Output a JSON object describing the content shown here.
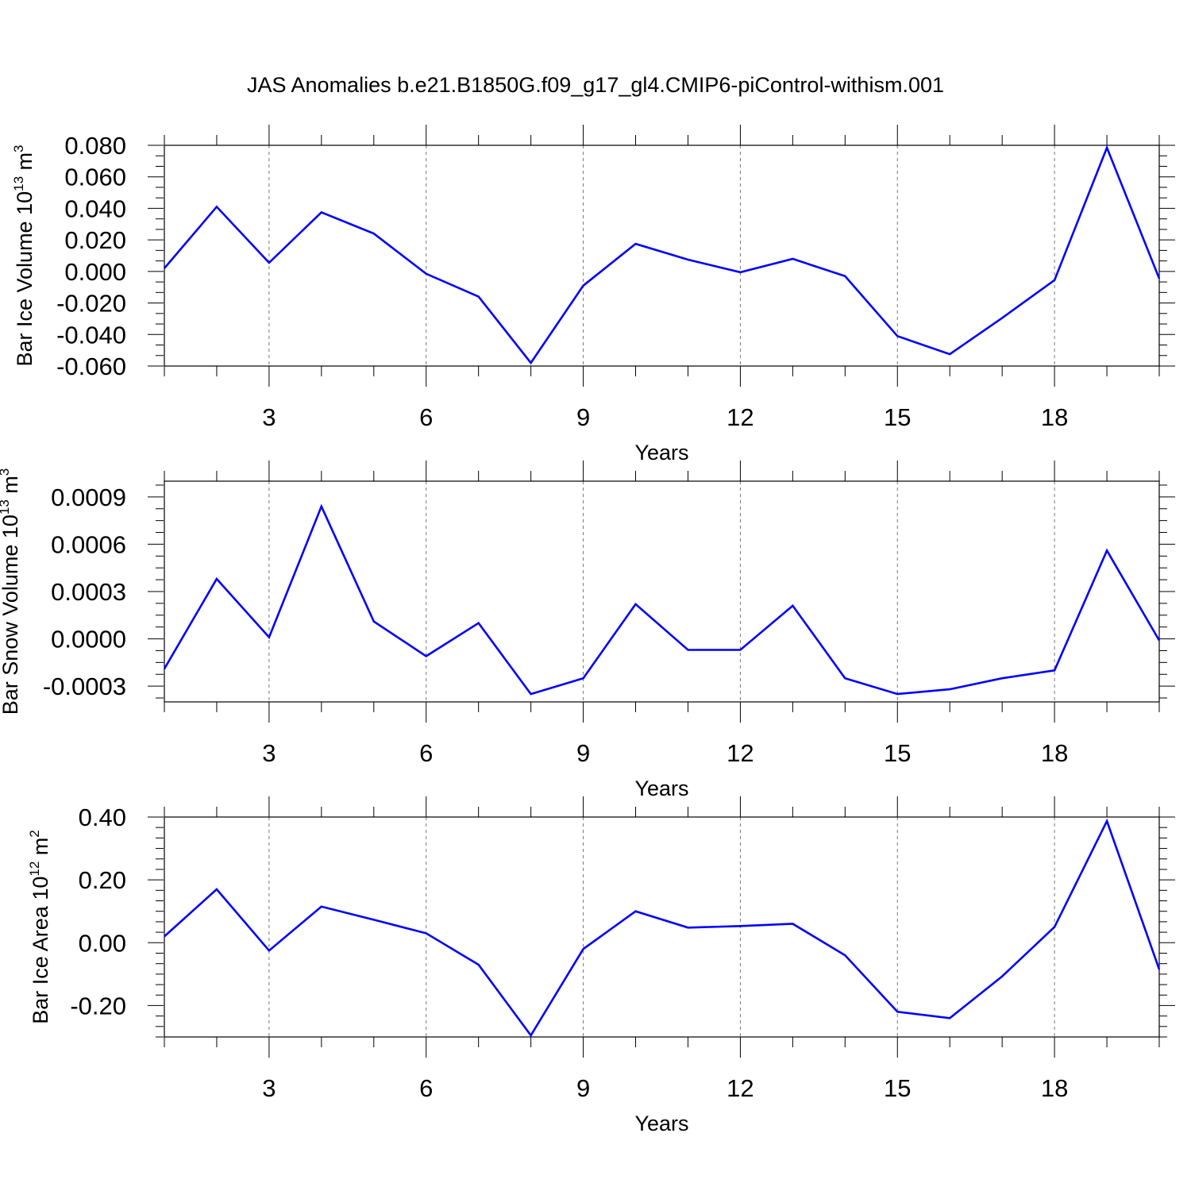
{
  "page": {
    "title": "JAS Anomalies b.e21.B1850G.f09_g17_gl4.CMIP6-piControl-withism.001"
  },
  "colors": {
    "series": "#0000ff",
    "axis": "#000000",
    "grid": "#777777"
  },
  "chart_data": [
    {
      "type": "line",
      "title": "",
      "xlabel": "Years",
      "ylabel": "Bar Ice Volume 10",
      "ylabel_exp": "13",
      "ylabel_unit": " m",
      "ylabel_unit_exp": "3",
      "xlim": [
        1,
        20
      ],
      "ylim": [
        -0.06,
        0.08
      ],
      "xticks": [
        3,
        6,
        9,
        12,
        15,
        18
      ],
      "xtick_labels": [
        "3",
        "6",
        "9",
        "12",
        "15",
        "18"
      ],
      "yticks": [
        -0.06,
        -0.04,
        -0.02,
        0.0,
        0.02,
        0.04,
        0.06,
        0.08
      ],
      "ytick_labels": [
        "-0.060",
        "-0.040",
        "-0.020",
        "0.000",
        "0.020",
        "0.040",
        "0.060",
        "0.080"
      ],
      "grid": "vertical dashed at major x ticks",
      "series": [
        {
          "x": [
            1,
            2,
            3,
            4,
            5,
            6,
            7,
            8,
            9,
            10,
            11,
            12,
            13,
            14,
            15,
            16,
            17,
            18,
            19,
            20
          ],
          "values": [
            0.002,
            0.041,
            0.0055,
            0.0375,
            0.024,
            -0.0015,
            -0.016,
            -0.058,
            -0.009,
            0.0175,
            0.0075,
            -0.0005,
            0.008,
            -0.003,
            -0.041,
            -0.0525,
            -0.0295,
            -0.0055,
            0.0785,
            -0.0045
          ]
        }
      ]
    },
    {
      "type": "line",
      "title": "",
      "xlabel": "Years",
      "ylabel": "Bar Snow Volume 10",
      "ylabel_exp": "13",
      "ylabel_unit": " m",
      "ylabel_unit_exp": "3",
      "xlim": [
        1,
        20
      ],
      "ylim": [
        -0.0004,
        0.001
      ],
      "xticks": [
        3,
        6,
        9,
        12,
        15,
        18
      ],
      "xtick_labels": [
        "3",
        "6",
        "9",
        "12",
        "15",
        "18"
      ],
      "yticks": [
        -0.0003,
        0.0,
        0.0003,
        0.0006,
        0.0009
      ],
      "ytick_labels": [
        "-0.0003",
        "0.0000",
        "0.0003",
        "0.0006",
        "0.0009"
      ],
      "grid": "vertical dashed at major x ticks",
      "series": [
        {
          "x": [
            1,
            2,
            3,
            4,
            5,
            6,
            7,
            8,
            9,
            10,
            11,
            12,
            13,
            14,
            15,
            16,
            17,
            18,
            19,
            20
          ],
          "values": [
            -0.00019,
            0.00038,
            1e-05,
            0.00084,
            0.00011,
            -0.00011,
            0.0001,
            -0.00035,
            -0.00025,
            0.00022,
            -7e-05,
            -7e-05,
            0.00021,
            -0.00025,
            -0.00035,
            -0.00032,
            -0.00025,
            -0.0002,
            0.00056,
            -1e-05
          ]
        }
      ]
    },
    {
      "type": "line",
      "title": "",
      "xlabel": "Years",
      "ylabel": "Bar Ice Area 10",
      "ylabel_exp": "12",
      "ylabel_unit": " m",
      "ylabel_unit_exp": "2",
      "xlim": [
        1,
        20
      ],
      "ylim": [
        -0.3,
        0.4
      ],
      "xticks": [
        3,
        6,
        9,
        12,
        15,
        18
      ],
      "xtick_labels": [
        "3",
        "6",
        "9",
        "12",
        "15",
        "18"
      ],
      "yticks": [
        -0.2,
        0.0,
        0.2,
        0.4
      ],
      "ytick_labels": [
        "-0.20",
        "0.00",
        "0.20",
        "0.40"
      ],
      "grid": "vertical dashed at major x ticks",
      "series": [
        {
          "x": [
            1,
            2,
            3,
            4,
            5,
            6,
            7,
            8,
            9,
            10,
            11,
            12,
            13,
            14,
            15,
            16,
            17,
            18,
            19,
            20
          ],
          "values": [
            0.02,
            0.17,
            -0.025,
            0.115,
            0.073,
            0.03,
            -0.07,
            -0.295,
            -0.02,
            0.1,
            0.048,
            0.053,
            0.06,
            -0.04,
            -0.22,
            -0.24,
            -0.107,
            0.05,
            0.387,
            -0.085
          ]
        }
      ]
    }
  ]
}
